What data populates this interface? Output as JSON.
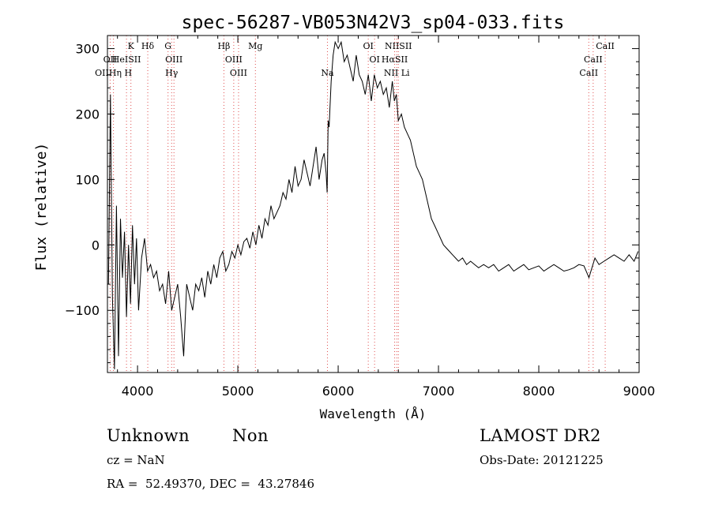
{
  "chart_data": {
    "type": "line",
    "title": "spec-56287-VB053N42V3_sp04-033.fits",
    "xlabel": "Wavelength (Å)",
    "ylabel": "Flux (relative)",
    "xlim": [
      3700,
      9000
    ],
    "ylim": [
      -195,
      320
    ],
    "xticks": [
      4000,
      5000,
      6000,
      7000,
      8000,
      9000
    ],
    "yticks": [
      -100,
      0,
      100,
      200,
      300
    ],
    "grid": false,
    "series": [
      {
        "name": "",
        "color": "#000000",
        "x": [
          3710,
          3730,
          3750,
          3770,
          3790,
          3810,
          3830,
          3850,
          3870,
          3890,
          3910,
          3930,
          3950,
          3970,
          3990,
          4010,
          4040,
          4070,
          4100,
          4130,
          4160,
          4190,
          4220,
          4250,
          4280,
          4310,
          4340,
          4370,
          4400,
          4430,
          4460,
          4490,
          4520,
          4550,
          4580,
          4610,
          4640,
          4670,
          4700,
          4730,
          4760,
          4790,
          4820,
          4850,
          4880,
          4910,
          4940,
          4970,
          5000,
          5030,
          5060,
          5090,
          5120,
          5150,
          5180,
          5210,
          5240,
          5270,
          5300,
          5330,
          5360,
          5390,
          5420,
          5450,
          5480,
          5510,
          5540,
          5570,
          5600,
          5630,
          5660,
          5690,
          5720,
          5750,
          5780,
          5810,
          5840,
          5860,
          5880,
          5890,
          5900,
          5910,
          5930,
          5950,
          5970,
          6000,
          6030,
          6060,
          6090,
          6120,
          6150,
          6180,
          6210,
          6240,
          6270,
          6300,
          6330,
          6360,
          6390,
          6420,
          6450,
          6480,
          6510,
          6540,
          6560,
          6580,
          6600,
          6630,
          6660,
          6690,
          6720,
          6750,
          6780,
          6810,
          6840,
          6870,
          6900,
          6930,
          6960,
          6990,
          7020,
          7050,
          7080,
          7110,
          7140,
          7170,
          7200,
          7240,
          7280,
          7320,
          7360,
          7400,
          7450,
          7500,
          7550,
          7600,
          7650,
          7700,
          7750,
          7800,
          7850,
          7900,
          7950,
          8000,
          8050,
          8100,
          8150,
          8200,
          8250,
          8300,
          8350,
          8400,
          8450,
          8500,
          8530,
          8560,
          8600,
          8650,
          8700,
          8750,
          8800,
          8850,
          8900,
          8950,
          8990
        ],
        "y": [
          -60,
          230,
          -80,
          -190,
          60,
          -170,
          40,
          -50,
          20,
          -110,
          0,
          -90,
          30,
          -60,
          10,
          -100,
          -20,
          10,
          -40,
          -30,
          -50,
          -40,
          -70,
          -60,
          -90,
          -40,
          -100,
          -80,
          -60,
          -110,
          -170,
          -60,
          -80,
          -100,
          -60,
          -70,
          -50,
          -80,
          -40,
          -60,
          -30,
          -50,
          -20,
          -10,
          -40,
          -30,
          -10,
          -20,
          0,
          -15,
          5,
          10,
          -5,
          20,
          0,
          30,
          10,
          40,
          30,
          60,
          40,
          50,
          60,
          80,
          70,
          100,
          80,
          120,
          90,
          100,
          130,
          110,
          90,
          120,
          150,
          100,
          130,
          140,
          110,
          80,
          190,
          180,
          250,
          290,
          310,
          300,
          310,
          280,
          290,
          270,
          250,
          290,
          260,
          250,
          230,
          260,
          220,
          260,
          240,
          250,
          230,
          240,
          210,
          250,
          220,
          230,
          190,
          200,
          180,
          170,
          160,
          140,
          120,
          110,
          100,
          80,
          60,
          40,
          30,
          20,
          10,
          0,
          -5,
          -10,
          -15,
          -20,
          -25,
          -20,
          -30,
          -25,
          -30,
          -35,
          -30,
          -35,
          -30,
          -40,
          -35,
          -30,
          -40,
          -35,
          -30,
          -38,
          -35,
          -32,
          -40,
          -35,
          -30,
          -35,
          -40,
          -38,
          -35,
          -30,
          -32,
          -50,
          -35,
          -20,
          -30,
          -25,
          -20,
          -15,
          -20,
          -25,
          -15,
          -25,
          -10
        ]
      }
    ],
    "line_ids": [
      {
        "label": "Hδ",
        "x": 4102,
        "row": 1
      },
      {
        "label": "K",
        "x": 3934,
        "row": 1
      },
      {
        "label": "G",
        "x": 4304,
        "row": 1
      },
      {
        "label": "Hβ",
        "x": 4861,
        "row": 1
      },
      {
        "label": "Mg",
        "x": 5175,
        "row": 1
      },
      {
        "label": "OI",
        "x": 6300,
        "row": 1
      },
      {
        "label": "NIISII",
        "x": 6600,
        "row": 1
      },
      {
        "label": "CaII",
        "x": 8662,
        "row": 1
      },
      {
        "label": "OII",
        "x": 3727,
        "row": 2
      },
      {
        "label": "HeISII",
        "x": 3890,
        "row": 2
      },
      {
        "label": "OIII",
        "x": 4363,
        "row": 2
      },
      {
        "label": "OIII",
        "x": 4959,
        "row": 2
      },
      {
        "label": "OI",
        "x": 6363,
        "row": 2
      },
      {
        "label": "HαSII",
        "x": 6563,
        "row": 2
      },
      {
        "label": "CaII",
        "x": 8542,
        "row": 2
      },
      {
        "label": "OIIHη H",
        "x": 3760,
        "row": 3
      },
      {
        "label": "Hγ",
        "x": 4340,
        "row": 3
      },
      {
        "label": "OIII",
        "x": 5007,
        "row": 3
      },
      {
        "label": "Na",
        "x": 5893,
        "row": 3
      },
      {
        "label": "NII Li",
        "x": 6584,
        "row": 3
      },
      {
        "label": "CaII",
        "x": 8498,
        "row": 3
      }
    ],
    "line_marker_color": "#e05050"
  },
  "info": {
    "class_label": "Unknown",
    "subclass_label": "Non",
    "survey_label": "LAMOST DR2",
    "cz_text": "cz = NaN",
    "obsdate_text": "Obs-Date: 20121225",
    "coords_text": "RA =  52.49370, DEC =  43.27846"
  }
}
